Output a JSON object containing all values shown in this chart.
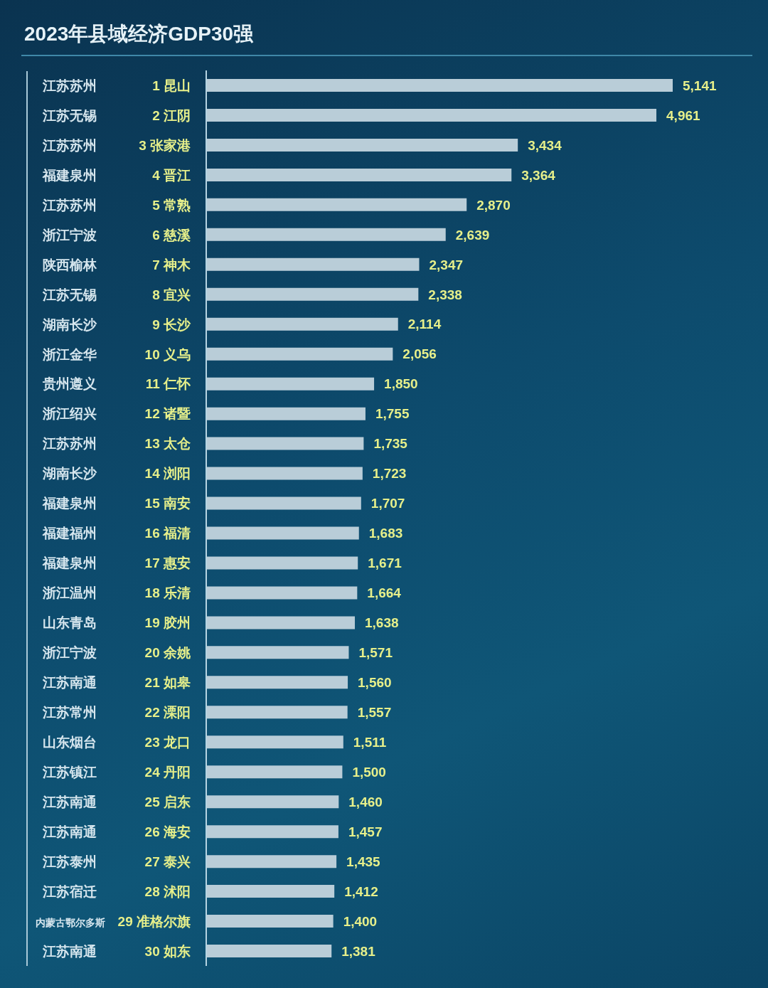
{
  "chart_data": {
    "type": "bar",
    "orientation": "horizontal",
    "title": "2023年县域经济GDP30强",
    "categories": [
      "江苏苏州 1 昆山",
      "江苏无锡 2 江阴",
      "江苏苏州 3 张家港",
      "福建泉州 4 晋江",
      "江苏苏州 5 常熟",
      "浙江宁波 6 慈溪",
      "陕西榆林 7 神木",
      "江苏无锡 8 宜兴",
      "湖南长沙 9 长沙",
      "浙江金华 10 义乌",
      "贵州遵义 11 仁怀",
      "浙江绍兴 12 诸暨",
      "江苏苏州 13 太仓",
      "湖南长沙 14 浏阳",
      "福建泉州 15 南安",
      "福建福州 16 福清",
      "福建泉州 17 惠安",
      "浙江温州 18 乐清",
      "山东青岛 19 胶州",
      "浙江宁波 20 余姚",
      "江苏南通 21 如皋",
      "江苏常州 22 溧阳",
      "山东烟台 23 龙口",
      "江苏镇江 24 丹阳",
      "江苏南通 25 启东",
      "江苏南通 26 海安",
      "江苏泰州 27 泰兴",
      "江苏宿迁 28 沭阳",
      "内蒙古鄂尔多斯 29 准格尔旗",
      "江苏南通 30 如东"
    ],
    "values": [
      5141,
      4961,
      3434,
      3364,
      2870,
      2639,
      2347,
      2338,
      2114,
      2056,
      1850,
      1755,
      1735,
      1723,
      1707,
      1683,
      1671,
      1664,
      1638,
      1571,
      1560,
      1557,
      1511,
      1500,
      1460,
      1457,
      1435,
      1412,
      1400,
      1381
    ],
    "value_labels": [
      "5,141",
      "4,961",
      "3,434",
      "3,364",
      "2,870",
      "2,639",
      "2,347",
      "2,338",
      "2,114",
      "2,056",
      "1,850",
      "1,755",
      "1,735",
      "1,723",
      "1,707",
      "1,683",
      "1,671",
      "1,664",
      "1,638",
      "1,571",
      "1,560",
      "1,557",
      "1,511",
      "1,500",
      "1,460",
      "1,457",
      "1,435",
      "1,412",
      "1,400",
      "1,381"
    ],
    "color": "#b9cdd8"
  }
}
